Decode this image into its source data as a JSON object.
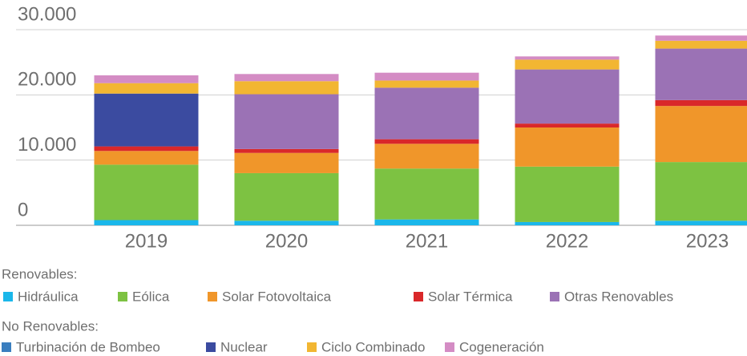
{
  "chart_data": {
    "type": "stacked_bar",
    "categories": [
      "2019",
      "2020",
      "2021",
      "2022",
      "2023"
    ],
    "series": [
      {
        "name": "Hidráulica",
        "color": "#1ab7ea",
        "values": [
          800,
          700,
          900,
          500,
          700
        ]
      },
      {
        "name": "Eólica",
        "color": "#7dc242",
        "values": [
          8500,
          7300,
          7800,
          8500,
          9000
        ]
      },
      {
        "name": "Solar Fotovoltaica",
        "color": "#f0962a",
        "values": [
          2100,
          3100,
          3800,
          6000,
          8600
        ]
      },
      {
        "name": "Solar Térmica",
        "color": "#d9282a",
        "values": [
          700,
          600,
          700,
          600,
          900
        ]
      },
      {
        "name": "Otras Renovables",
        "color": "#9b72b5",
        "values": [
          0,
          8400,
          7900,
          8300,
          7900
        ]
      },
      {
        "name": "Turbinación de Bombeo",
        "color": "#3a7ebf",
        "values": [
          0,
          0,
          0,
          0,
          0
        ]
      },
      {
        "name": "Nuclear",
        "color": "#3b4ba0",
        "values": [
          8100,
          0,
          0,
          0,
          0
        ]
      },
      {
        "name": "Ciclo Combinado",
        "color": "#f2b632",
        "values": [
          1600,
          2000,
          1100,
          1500,
          1200
        ]
      },
      {
        "name": "Cogeneración",
        "color": "#d48cc4",
        "values": [
          1200,
          1100,
          1200,
          500,
          800
        ]
      }
    ],
    "legend_titles": [
      "Renovables:",
      "No Renovables:"
    ],
    "ylim": [
      0,
      30000
    ],
    "yticks": [
      0,
      {
        "value": 10000,
        "label": "10.000"
      },
      {
        "value": 20000,
        "label": "20.000"
      },
      {
        "value": 30000,
        "label": "30.000"
      }
    ],
    "grid": true
  }
}
